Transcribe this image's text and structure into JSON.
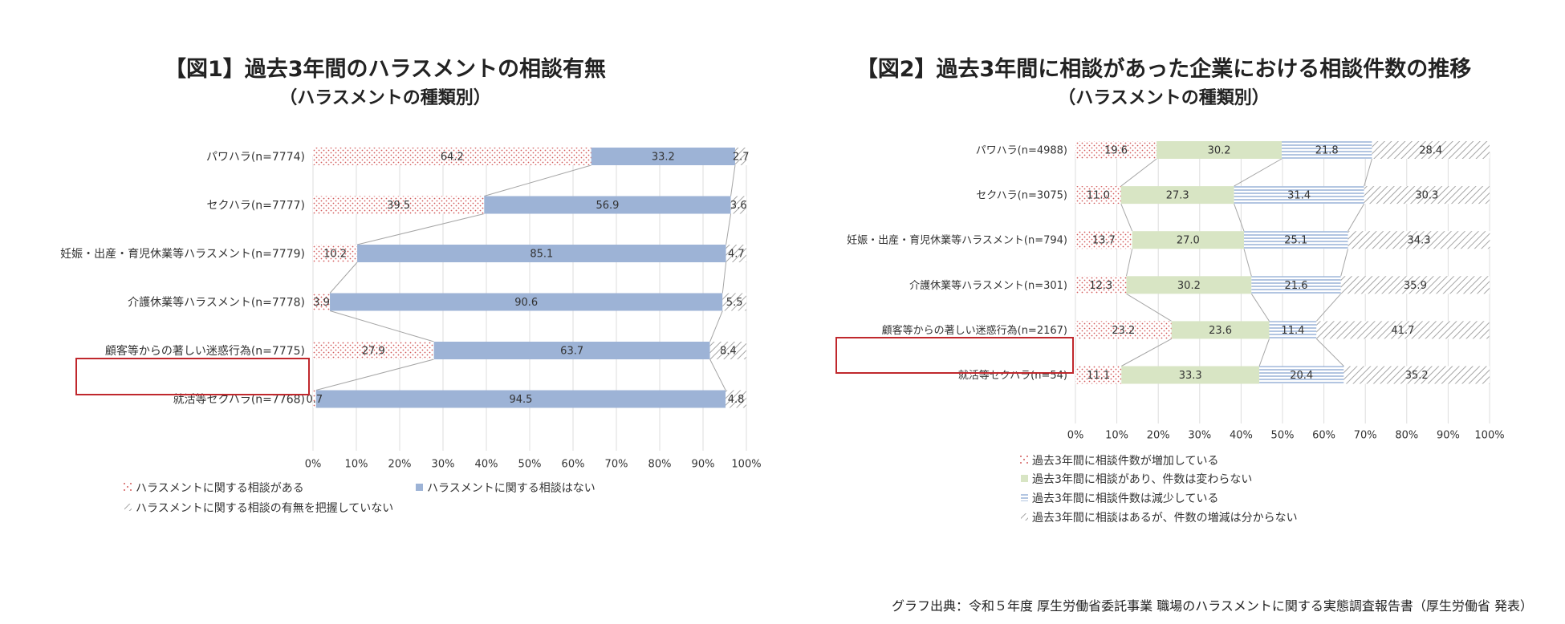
{
  "charts": [
    {
      "title_line1": "【図1】過去3年間のハラスメントの相談有無",
      "title_line2": "（ハラスメントの種類別）"
    },
    {
      "title_line1": "【図2】過去3年間に相談があった企業における相談件数の推移",
      "title_line2": "（ハラスメントの種類別）"
    }
  ],
  "source": "グラフ出典：令和５年度 厚生労働省委託事業 職場のハラスメントに関する実態調査報告書（厚生労働省 発表）",
  "colors": {
    "dots": "#d25a5a",
    "blue": "#9db3d6",
    "green": "#d8e5c4",
    "hlines": "#7f9fcd",
    "hatch": "#a6a6a6",
    "highlight": "#c0282d",
    "connector": "#a6a6a6",
    "grid": "#dddddd"
  },
  "chart_data": [
    {
      "type": "bar",
      "stacked": true,
      "orientation": "horizontal",
      "percent": true,
      "title": "【図1】過去3年間のハラスメントの相談有無（ハラスメントの種類別）",
      "categories": [
        "パワハラ(n=7774)",
        "セクハラ(n=7777)",
        "妊娠・出産・育児休業等ハラスメント(n=7779)",
        "介護休業等ハラスメント(n=7778)",
        "顧客等からの著しい迷惑行為(n=7775)",
        "就活等セクハラ(n=7768)"
      ],
      "highlight_category": 4,
      "series": [
        {
          "name": "ハラスメントに関する相談がある",
          "pattern": "dots",
          "values": [
            64.2,
            39.5,
            10.2,
            3.9,
            27.9,
            0.7
          ]
        },
        {
          "name": "ハラスメントに関する相談はない",
          "pattern": "blue",
          "values": [
            33.2,
            56.9,
            85.1,
            90.6,
            63.7,
            94.5
          ]
        },
        {
          "name": "ハラスメントに関する相談の有無を把握していない",
          "pattern": "hatch",
          "values": [
            2.7,
            3.6,
            4.7,
            5.5,
            8.4,
            4.8
          ]
        }
      ],
      "xlim": [
        0,
        100
      ],
      "xticks": [
        "0%",
        "10%",
        "20%",
        "30%",
        "40%",
        "50%",
        "60%",
        "70%",
        "80%",
        "90%",
        "100%"
      ],
      "legend_position": "bottom"
    },
    {
      "type": "bar",
      "stacked": true,
      "orientation": "horizontal",
      "percent": true,
      "title": "【図2】過去3年間に相談があった企業における相談件数の推移（ハラスメントの種類別）",
      "categories": [
        "パワハラ(n=4988)",
        "セクハラ(n=3075)",
        "妊娠・出産・育児休業等ハラスメント(n=794)",
        "介護休業等ハラスメント(n=301)",
        "顧客等からの著しい迷惑行為(n=2167)",
        "就活等セクハラ(n=54)"
      ],
      "highlight_category": 4,
      "series": [
        {
          "name": "過去3年間に相談件数が増加している",
          "pattern": "dots",
          "values": [
            19.6,
            11.0,
            13.7,
            12.3,
            23.2,
            11.1
          ]
        },
        {
          "name": "過去3年間に相談があり、件数は変わらない",
          "pattern": "green",
          "values": [
            30.2,
            27.3,
            27.0,
            30.2,
            23.6,
            33.3
          ]
        },
        {
          "name": "過去3年間に相談件数は減少している",
          "pattern": "hlines",
          "values": [
            21.8,
            31.4,
            25.1,
            21.6,
            11.4,
            20.4
          ]
        },
        {
          "name": "過去3年間に相談はあるが、件数の増減は分からない",
          "pattern": "hatch",
          "values": [
            28.4,
            30.3,
            34.3,
            35.9,
            41.7,
            35.2
          ]
        }
      ],
      "xlim": [
        0,
        100
      ],
      "xticks": [
        "0%",
        "10%",
        "20%",
        "30%",
        "40%",
        "50%",
        "60%",
        "70%",
        "80%",
        "90%",
        "100%"
      ],
      "legend_position": "bottom"
    }
  ]
}
